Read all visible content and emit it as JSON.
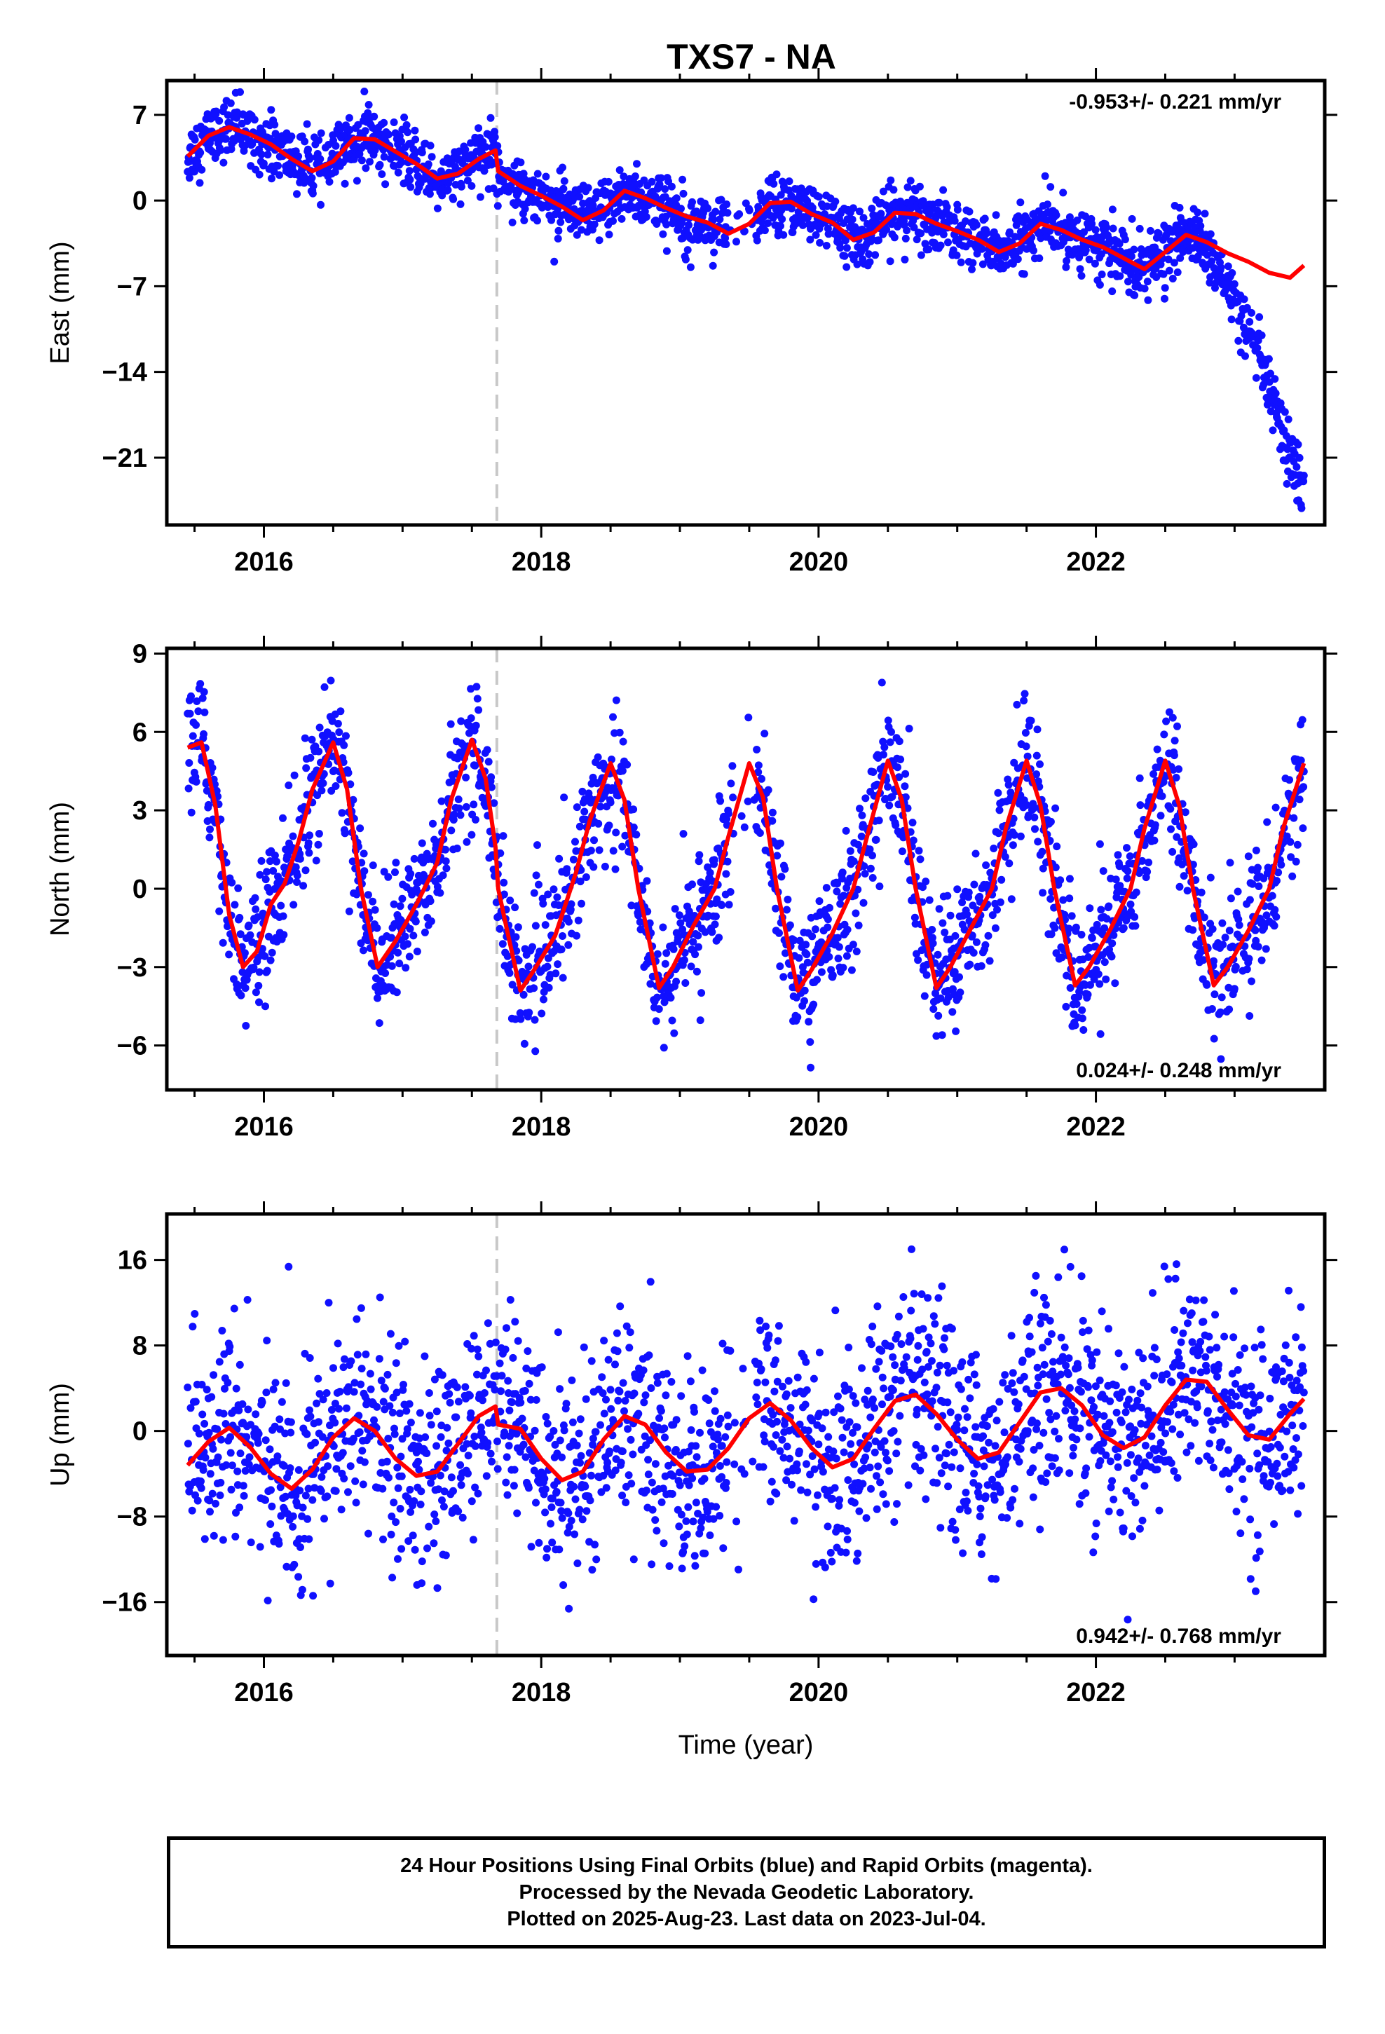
{
  "title": "TXS7 - NA",
  "colors": {
    "data": "#1010ff",
    "model": "#ff0000",
    "equipment_change": "#c8c8c8",
    "frame": "#000000"
  },
  "chart_data": [
    {
      "type": "scatter",
      "component": "east",
      "ylabel": "East (mm)",
      "xlabel": "",
      "xlim": [
        2015.3,
        2023.65
      ],
      "ylim": [
        -26.5,
        9.8
      ],
      "yticks": [
        7,
        0,
        -7,
        -14,
        -21
      ],
      "xticks": [
        2016,
        2018,
        2020,
        2022
      ],
      "rate_label": "-0.953+/- 0.221 mm/yr",
      "rate_position": "top-right",
      "equipment_change": 2017.68,
      "model": {
        "x": [
          2015.45,
          2015.6,
          2015.75,
          2015.9,
          2016.05,
          2016.2,
          2016.35,
          2016.5,
          2016.65,
          2016.8,
          2016.95,
          2017.1,
          2017.25,
          2017.4,
          2017.55,
          2017.67,
          2017.69,
          2017.85,
          2018.0,
          2018.15,
          2018.3,
          2018.45,
          2018.6,
          2018.75,
          2018.9,
          2019.05,
          2019.2,
          2019.35,
          2019.5,
          2019.65,
          2019.8,
          2019.95,
          2020.1,
          2020.25,
          2020.4,
          2020.55,
          2020.7,
          2020.85,
          2021.0,
          2021.15,
          2021.3,
          2021.45,
          2021.6,
          2021.75,
          2021.9,
          2022.05,
          2022.2,
          2022.35,
          2022.5,
          2022.65,
          2022.8,
          2022.95,
          2023.1,
          2023.25,
          2023.4,
          2023.5
        ],
        "y": [
          3.6,
          5.3,
          6.0,
          5.4,
          4.6,
          3.4,
          2.4,
          3.2,
          5.1,
          5.0,
          4.0,
          3.0,
          1.8,
          2.2,
          3.4,
          4.1,
          2.4,
          1.2,
          0.4,
          -0.5,
          -1.6,
          -0.8,
          0.8,
          0.2,
          -0.6,
          -1.3,
          -1.8,
          -2.7,
          -1.9,
          -0.2,
          -0.1,
          -1.1,
          -1.8,
          -3.2,
          -2.6,
          -1.0,
          -1.1,
          -1.9,
          -2.5,
          -3.2,
          -4.2,
          -3.5,
          -1.9,
          -2.4,
          -3.2,
          -3.8,
          -4.7,
          -5.6,
          -4.2,
          -2.8,
          -3.4,
          -4.3,
          -5.0,
          -5.9,
          -6.3,
          -5.3
        ]
      },
      "observations": {
        "trend": [
          [
            2015.45,
            5.0
          ],
          [
            2016.0,
            4.2
          ],
          [
            2017.0,
            3.0
          ],
          [
            2017.68,
            2.8
          ],
          [
            2018.5,
            -0.3
          ],
          [
            2019.5,
            -1.8
          ],
          [
            2020.5,
            -1.6
          ],
          [
            2021.5,
            -2.4
          ],
          [
            2022.3,
            -3.5
          ],
          [
            2022.6,
            -3.8
          ],
          [
            2022.8,
            -4.5
          ],
          [
            2023.0,
            -8.0
          ],
          [
            2023.1,
            -11.0
          ],
          [
            2023.2,
            -13.5
          ],
          [
            2023.3,
            -17.5
          ],
          [
            2023.4,
            -21.5
          ],
          [
            2023.5,
            -23.0
          ]
        ],
        "seasonal_amplitude": 1.2,
        "scatter_mm": 1.2,
        "phase": 0.55,
        "count": 2300,
        "gap": [
          2019.35,
          2019.55
        ]
      }
    },
    {
      "type": "scatter",
      "component": "north",
      "ylabel": "North (mm)",
      "xlabel": "",
      "xlim": [
        2015.3,
        2023.65
      ],
      "ylim": [
        -7.7,
        9.2
      ],
      "yticks": [
        9,
        6,
        3,
        0,
        -3,
        -6
      ],
      "xticks": [
        2016,
        2018,
        2020,
        2022
      ],
      "rate_label": "0.024+/- 0.248 mm/yr",
      "rate_position": "bottom-right",
      "equipment_change": 2017.68,
      "model": {
        "x": [
          2015.45,
          2015.55,
          2015.65,
          2015.75,
          2015.85,
          2015.95,
          2016.05,
          2016.15,
          2016.25,
          2016.35,
          2016.5,
          2016.6,
          2016.7,
          2016.82,
          2016.95,
          2017.1,
          2017.25,
          2017.35,
          2017.5,
          2017.6,
          2017.67,
          2017.69,
          2017.75,
          2017.85,
          2017.95,
          2018.1,
          2018.25,
          2018.35,
          2018.5,
          2018.6,
          2018.7,
          2018.85,
          2018.95,
          2019.1,
          2019.25,
          2019.35,
          2019.5,
          2019.6,
          2019.7,
          2019.85,
          2019.95,
          2020.1,
          2020.25,
          2020.35,
          2020.5,
          2020.6,
          2020.7,
          2020.85,
          2020.95,
          2021.1,
          2021.25,
          2021.35,
          2021.5,
          2021.6,
          2021.7,
          2021.85,
          2021.95,
          2022.1,
          2022.25,
          2022.35,
          2022.5,
          2022.6,
          2022.7,
          2022.85,
          2022.95,
          2023.1,
          2023.25,
          2023.35,
          2023.5
        ],
        "y": [
          5.4,
          5.6,
          3.2,
          -1.0,
          -3.0,
          -2.4,
          -0.6,
          0.2,
          1.8,
          3.8,
          5.6,
          3.8,
          0.0,
          -3.0,
          -2.0,
          -0.6,
          1.0,
          3.4,
          5.7,
          4.2,
          1.6,
          0.0,
          -1.5,
          -3.9,
          -3.1,
          -1.8,
          0.6,
          2.6,
          4.8,
          3.4,
          0.0,
          -3.8,
          -3.0,
          -1.4,
          0.0,
          2.0,
          4.8,
          3.5,
          0.0,
          -3.9,
          -3.1,
          -1.7,
          0.0,
          2.0,
          4.9,
          3.4,
          0.0,
          -3.8,
          -3.0,
          -1.5,
          0.0,
          2.3,
          4.9,
          3.2,
          0.0,
          -3.7,
          -3.0,
          -1.6,
          0.0,
          2.3,
          4.9,
          3.2,
          0.0,
          -3.7,
          -3.0,
          -1.6,
          0.0,
          2.3,
          4.8
        ]
      },
      "observations": {
        "trend": [
          [
            2015.45,
            0.6
          ],
          [
            2023.5,
            0.6
          ]
        ],
        "seasonal_amplitude": 4.6,
        "scatter_mm": 1.2,
        "phase": 0.25,
        "count": 2300,
        "gap": [
          2019.35,
          2019.55
        ]
      }
    },
    {
      "type": "scatter",
      "component": "up",
      "ylabel": "Up (mm)",
      "xlabel": "Time (year)",
      "xlim": [
        2015.3,
        2023.65
      ],
      "ylim": [
        -21,
        20.3
      ],
      "yticks": [
        16,
        8,
        0,
        -8,
        -16
      ],
      "xticks": [
        2016,
        2018,
        2020,
        2022
      ],
      "rate_label": "0.942+/- 0.768 mm/yr",
      "rate_position": "bottom-right",
      "equipment_change": 2017.68,
      "model": {
        "x": [
          2015.45,
          2015.6,
          2015.75,
          2015.9,
          2016.05,
          2016.2,
          2016.35,
          2016.5,
          2016.65,
          2016.8,
          2016.95,
          2017.1,
          2017.25,
          2017.4,
          2017.55,
          2017.67,
          2017.69,
          2017.85,
          2018.0,
          2018.15,
          2018.3,
          2018.45,
          2018.6,
          2018.75,
          2018.9,
          2019.05,
          2019.2,
          2019.35,
          2019.5,
          2019.65,
          2019.8,
          2019.95,
          2020.1,
          2020.25,
          2020.4,
          2020.55,
          2020.7,
          2020.85,
          2021.0,
          2021.15,
          2021.3,
          2021.45,
          2021.6,
          2021.75,
          2021.9,
          2022.05,
          2022.2,
          2022.35,
          2022.5,
          2022.65,
          2022.8,
          2022.95,
          2023.1,
          2023.25,
          2023.4,
          2023.5
        ],
        "y": [
          -3.2,
          -1.0,
          0.3,
          -1.5,
          -4.0,
          -5.4,
          -3.6,
          -0.6,
          1.2,
          0.0,
          -2.6,
          -4.2,
          -3.8,
          -1.2,
          1.4,
          2.3,
          0.6,
          0.2,
          -2.6,
          -4.6,
          -3.8,
          -0.8,
          1.4,
          0.6,
          -2.0,
          -3.8,
          -3.6,
          -1.6,
          1.2,
          2.6,
          1.0,
          -1.6,
          -3.4,
          -2.6,
          0.2,
          2.8,
          3.4,
          1.6,
          -0.8,
          -2.6,
          -2.0,
          0.8,
          3.6,
          4.0,
          2.4,
          -0.4,
          -1.6,
          -0.6,
          2.4,
          4.8,
          4.6,
          2.0,
          -0.4,
          -0.8,
          1.6,
          3.0
        ]
      },
      "observations": {
        "trend": [
          [
            2015.45,
            -2.2
          ],
          [
            2017.68,
            -1.0
          ],
          [
            2019.5,
            -3.0
          ],
          [
            2021.0,
            0.0
          ],
          [
            2023.5,
            2.5
          ]
        ],
        "seasonal_amplitude": 3.0,
        "scatter_mm": 4.8,
        "phase": 0.55,
        "count": 2200,
        "gap": [
          2019.35,
          2019.55
        ]
      }
    }
  ],
  "footer": {
    "line1": "24 Hour Positions Using Final Orbits (blue) and Rapid Orbits (magenta).",
    "line2": "Processed by the Nevada Geodetic Laboratory.",
    "line3": "Plotted on 2025-Aug-23. Last data on 2023-Jul-04."
  }
}
